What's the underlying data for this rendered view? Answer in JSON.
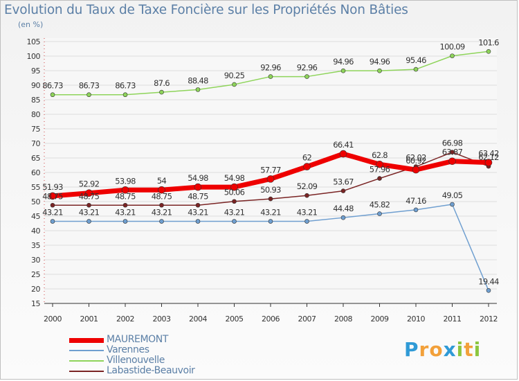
{
  "title": "Evolution du Taux de Taxe Foncière sur les Propriétés Non Bâties",
  "unit_label": "(en %)",
  "brand": {
    "text": "Proxiti",
    "letters": [
      "P",
      "r",
      "o",
      "x",
      "i",
      "t",
      "i"
    ],
    "colors": [
      "#2f9ad6",
      "#f2a03a",
      "#f2a03a",
      "#2f9ad6",
      "#8cc63f",
      "#f2a03a",
      "#8cc63f"
    ]
  },
  "chart_data": {
    "type": "line",
    "title": "Evolution du Taux de Taxe Foncière sur les Propriétés Non Bâties",
    "ylabel": "(en %)",
    "x": [
      "2000",
      "2001",
      "2002",
      "2003",
      "2004",
      "2005",
      "2006",
      "2007",
      "2008",
      "2009",
      "2010",
      "2011",
      "2012"
    ],
    "ylim": [
      15,
      105
    ],
    "yticks": [
      15,
      20,
      25,
      30,
      35,
      40,
      45,
      50,
      55,
      60,
      65,
      70,
      75,
      80,
      85,
      90,
      95,
      100,
      105
    ],
    "grid": "horizontal",
    "legend_position": "bottom-left",
    "series": [
      {
        "name": "MAUREMONT",
        "color": "#ee0000",
        "width": 7,
        "labels": [
          "51.93",
          "52.92",
          "53.98",
          "54",
          "54.98",
          "54.98",
          "57.77",
          "62",
          "66.41",
          "62.8",
          "60.92",
          "63.87",
          "63.42"
        ],
        "values": [
          51.93,
          52.92,
          53.98,
          54,
          54.98,
          54.98,
          57.77,
          62,
          66.41,
          62.8,
          60.92,
          63.87,
          63.42
        ]
      },
      {
        "name": "Varennes",
        "color": "#6f9fd0",
        "width": 1.5,
        "labels": [
          "43.21",
          "43.21",
          "43.21",
          "43.21",
          "43.21",
          "43.21",
          "43.21",
          "43.21",
          "44.48",
          "45.82",
          "47.16",
          "49.05",
          "19.44"
        ],
        "values": [
          43.21,
          43.21,
          43.21,
          43.21,
          43.21,
          43.21,
          43.21,
          43.21,
          44.48,
          45.82,
          47.16,
          49.05,
          19.44
        ]
      },
      {
        "name": "Villenouvelle",
        "color": "#8ed45a",
        "width": 1.5,
        "labels": [
          "86.73",
          "86.73",
          "86.73",
          "87.6",
          "88.48",
          "90.25",
          "92.96",
          "92.96",
          "94.96",
          "94.96",
          "95.46",
          "100.09",
          "101.6"
        ],
        "values": [
          86.73,
          86.73,
          86.73,
          87.6,
          88.48,
          90.25,
          92.96,
          92.96,
          94.96,
          94.96,
          95.46,
          100.09,
          101.6
        ]
      },
      {
        "name": "Labastide-Beauvoir",
        "color": "#7a2424",
        "width": 1.5,
        "labels": [
          "48.75",
          "48.75",
          "48.75",
          "48.75",
          "48.75",
          "50.06",
          "50.93",
          "52.09",
          "53.67",
          "57.96",
          "62.02",
          "66.98",
          "62.12"
        ],
        "values": [
          48.75,
          48.75,
          48.75,
          48.75,
          48.75,
          50.06,
          50.93,
          52.09,
          53.67,
          57.96,
          62.02,
          66.98,
          62.12
        ]
      }
    ]
  }
}
